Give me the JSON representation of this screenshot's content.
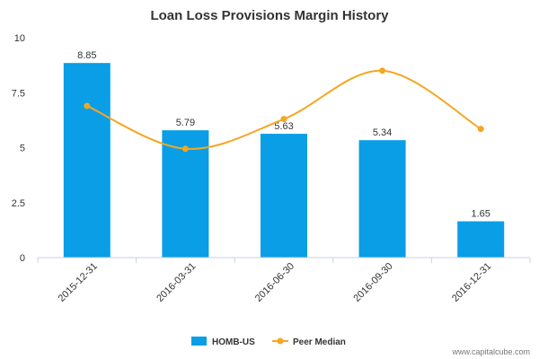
{
  "chart_data": {
    "type": "bar",
    "title": "Loan Loss Provisions Margin History",
    "categories": [
      "2015-12-31",
      "2016-03-31",
      "2016-06-30",
      "2016-09-30",
      "2016-12-31"
    ],
    "series": [
      {
        "name": "HOMB-US",
        "kind": "bar",
        "values": [
          8.85,
          5.79,
          5.63,
          5.34,
          1.65
        ],
        "color": "#0a9ee6"
      },
      {
        "name": "Peer Median",
        "kind": "line",
        "smooth": true,
        "values": [
          6.9,
          4.95,
          6.3,
          8.5,
          5.85
        ],
        "color": "#f5a623"
      }
    ],
    "data_labels": [
      "8.85",
      "5.79",
      "5.63",
      "5.34",
      "1.65"
    ],
    "ylim": [
      0,
      10
    ],
    "yticks": [
      0,
      2.5,
      5,
      7.5,
      10
    ],
    "ytick_labels": [
      "0",
      "2.5",
      "5",
      "7.5",
      "10"
    ],
    "grid": false,
    "legend_position": "bottom-center",
    "axis_color": "#c8d2de",
    "text_color": "#333333"
  },
  "footer": {
    "source": "www.capitalcube.com"
  }
}
